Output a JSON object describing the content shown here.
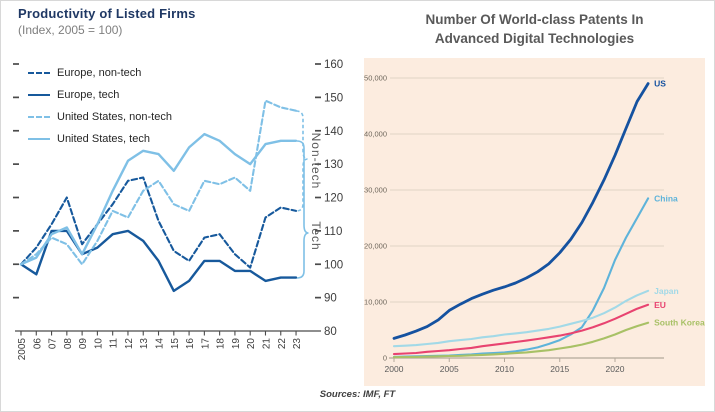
{
  "page": {
    "background": "#ffffff",
    "sources": "Sources: IMF, FT"
  },
  "chart_data": [
    {
      "type": "line",
      "title": "Productivity of Listed Firms",
      "subtitle": "(Index, 2005 = 100)",
      "x_tick_labels": [
        "2005",
        "06",
        "07",
        "08",
        "09",
        "10",
        "11",
        "12",
        "13",
        "14",
        "15",
        "16",
        "17",
        "18",
        "19",
        "20",
        "21",
        "22",
        "23"
      ],
      "ylim": [
        80,
        160
      ],
      "y_ticks": [
        80,
        90,
        100,
        110,
        120,
        130,
        140,
        150,
        160
      ],
      "y_axis_side": "right",
      "grid": false,
      "legend_position": "top-left",
      "group_labels": [
        "Non-tech",
        "Tech"
      ],
      "colors": {
        "europe": "#17599c",
        "united_states": "#7fc0e6",
        "brace": "#7fc0e6"
      },
      "series": [
        {
          "name": "Europe, non-tech",
          "color": "#17599c",
          "dash": "dashed",
          "group": "Non-tech",
          "values": [
            100,
            105,
            112,
            120,
            106,
            112,
            118,
            125,
            126,
            113,
            104,
            101,
            108,
            109,
            103,
            99,
            114,
            117,
            116
          ]
        },
        {
          "name": "Europe, tech",
          "color": "#17599c",
          "dash": "solid",
          "group": "Tech",
          "values": [
            100,
            97,
            110,
            110,
            103,
            105,
            109,
            110,
            107,
            101,
            92,
            95,
            101,
            101,
            98,
            98,
            95,
            96,
            96
          ]
        },
        {
          "name": "United States, non-tech",
          "color": "#7fc0e6",
          "dash": "dashed",
          "group": "Non-tech",
          "values": [
            100,
            103,
            108,
            106,
            100,
            107,
            116,
            114,
            122,
            125,
            118,
            116,
            125,
            124,
            126,
            122,
            149,
            147,
            146
          ]
        },
        {
          "name": "United States, tech",
          "color": "#7fc0e6",
          "dash": "solid",
          "group": "Tech",
          "values": [
            100,
            102,
            109,
            111,
            103,
            112,
            122,
            131,
            134,
            133,
            128,
            135,
            139,
            137,
            133,
            130,
            136,
            137,
            137
          ]
        }
      ]
    },
    {
      "type": "line",
      "title": "Number Of World-class Patents In Advanced Digital Technologies",
      "title_lines": [
        "Number Of World-class Patents In",
        "Advanced Digital Technologies"
      ],
      "panel_background": "#fcecdf",
      "x": [
        2000,
        2001,
        2002,
        2003,
        2004,
        2005,
        2006,
        2007,
        2008,
        2009,
        2010,
        2011,
        2012,
        2013,
        2014,
        2015,
        2016,
        2017,
        2018,
        2019,
        2020,
        2021,
        2022,
        2023
      ],
      "x_ticks": [
        2000,
        2005,
        2010,
        2015,
        2020
      ],
      "ylim": [
        0,
        50000
      ],
      "y_tick_labels": [
        "0",
        "10,000",
        "20,000",
        "30,000",
        "40,000",
        "50,000"
      ],
      "grid": true,
      "legend_position": "line-end-labels",
      "series": [
        {
          "name": "US",
          "color": "#1552a0",
          "values": [
            3500,
            4100,
            4800,
            5600,
            6800,
            8500,
            9600,
            10600,
            11400,
            12100,
            12700,
            13400,
            14300,
            15400,
            16800,
            18800,
            21200,
            24200,
            27800,
            31800,
            36200,
            41000,
            45800,
            49000
          ]
        },
        {
          "name": "China",
          "color": "#5eb3da",
          "values": [
            200,
            250,
            300,
            350,
            400,
            450,
            550,
            650,
            800,
            900,
            1000,
            1200,
            1500,
            1900,
            2500,
            3200,
            4200,
            5500,
            8500,
            12500,
            17500,
            21500,
            25000,
            28500
          ]
        },
        {
          "name": "Japan",
          "color": "#a2d9e7",
          "values": [
            2100,
            2200,
            2300,
            2500,
            2700,
            3000,
            3200,
            3400,
            3700,
            3900,
            4200,
            4400,
            4600,
            4900,
            5200,
            5600,
            6100,
            6600,
            7200,
            8000,
            9000,
            10200,
            11200,
            12000
          ]
        },
        {
          "name": "EU",
          "color": "#e84370",
          "values": [
            700,
            800,
            900,
            1100,
            1250,
            1400,
            1600,
            1800,
            2100,
            2350,
            2600,
            2850,
            3100,
            3400,
            3700,
            4000,
            4400,
            4900,
            5500,
            6200,
            7000,
            7900,
            8800,
            9500
          ]
        },
        {
          "name": "South Korea",
          "color": "#a8c166",
          "values": [
            150,
            170,
            200,
            250,
            300,
            350,
            400,
            480,
            550,
            650,
            750,
            870,
            1000,
            1200,
            1400,
            1700,
            2000,
            2400,
            2900,
            3500,
            4200,
            5000,
            5700,
            6300
          ]
        }
      ]
    }
  ]
}
